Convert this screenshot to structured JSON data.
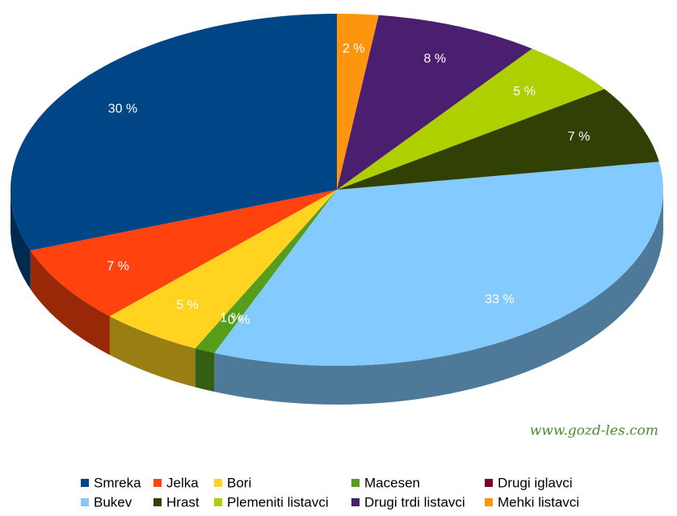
{
  "chart_data": {
    "type": "pie",
    "categories": [
      "Smreka",
      "Jelka",
      "Bori",
      "Macesen",
      "Drugi iglavci",
      "Bukev",
      "Hrast",
      "Plemeniti listavci",
      "Drugi trdi listavci",
      "Mehki listavci"
    ],
    "values": [
      30,
      7,
      5,
      1,
      0,
      33,
      7,
      5,
      8,
      2
    ],
    "value_labels": [
      "30 %",
      "7 %",
      "5 %",
      "1 %",
      "0 %",
      "33 %",
      "7 %",
      "5 %",
      "8 %",
      "2 %"
    ],
    "colors": [
      "#004586",
      "#ff420e",
      "#ffd320",
      "#579d1c",
      "#7e0021",
      "#83caff",
      "#314004",
      "#aecf00",
      "#4b1f6f",
      "#ff950e"
    ],
    "watermark": "www.gozd-les.com"
  }
}
